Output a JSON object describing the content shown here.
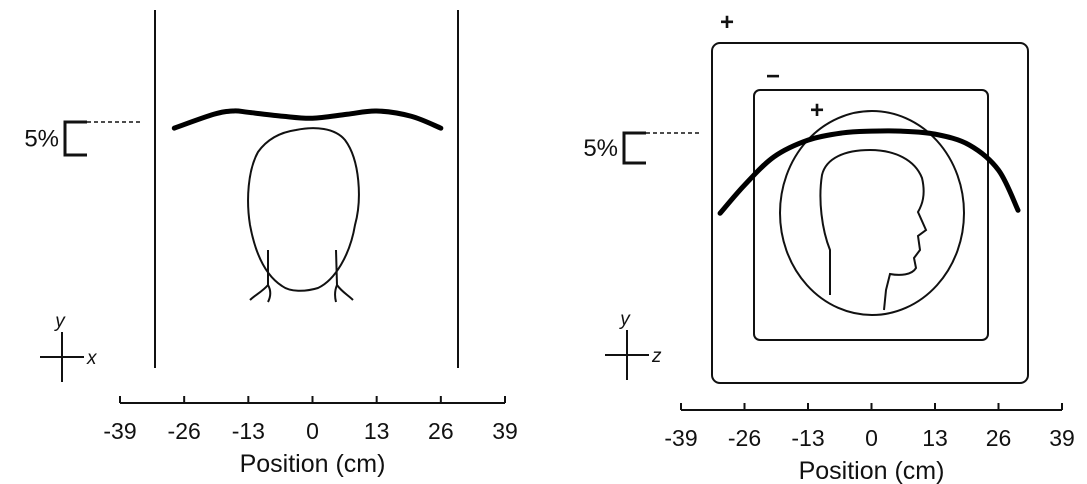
{
  "chart_data": [
    {
      "type": "line",
      "xlabel": "Position (cm)",
      "x": [
        -28,
        -20,
        -16,
        -13,
        -6,
        0,
        7,
        13,
        20,
        26
      ],
      "values": [
        -2.6,
        -0.5,
        0,
        -0.2,
        -0.8,
        -1.1,
        -0.5,
        0,
        -0.8,
        -2.6
      ],
      "color": "#000000",
      "xlim": [
        -39,
        39
      ],
      "xticks": [
        -39,
        -26,
        -13,
        0,
        13,
        26,
        39
      ],
      "ylim": [
        -40,
        15.3
      ],
      "scale_bar": {
        "value": 5,
        "label": "5%"
      },
      "axis_names": [
        "y",
        "x"
      ]
    },
    {
      "type": "line",
      "xlabel": "Position (cm)",
      "x": [
        -31,
        -26,
        -20,
        -13,
        -6,
        0,
        6,
        13,
        20,
        26,
        30
      ],
      "values": [
        -13.7,
        -9,
        -4.3,
        -1.5,
        -0.3,
        0,
        0,
        -0.5,
        -2.3,
        -6.5,
        -13.2
      ],
      "color": "#000000",
      "xlim": [
        -39,
        39
      ],
      "xticks": [
        -39,
        -26,
        -13,
        0,
        13,
        26,
        39
      ],
      "ylim": [
        -41.5,
        20.2
      ],
      "scale_bar": {
        "value": 5,
        "label": "5%"
      },
      "axis_names": [
        "y",
        "z"
      ],
      "annotations": [
        "+",
        "−",
        "+"
      ]
    }
  ]
}
